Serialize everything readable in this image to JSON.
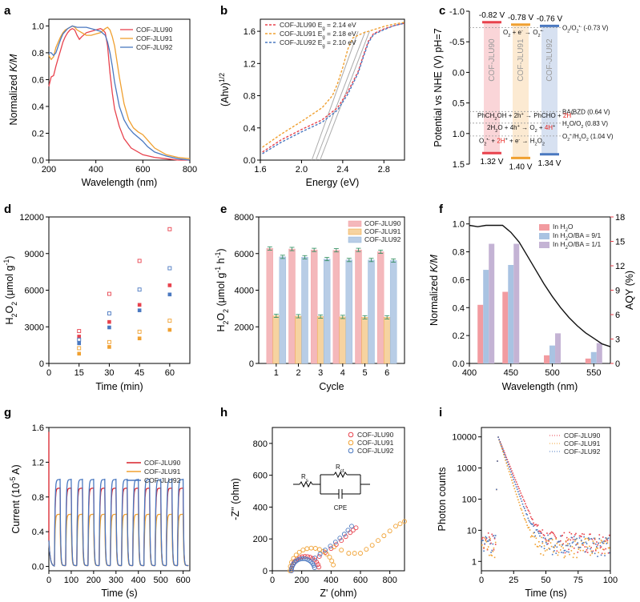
{
  "colors": {
    "jlu90": "#e8424d",
    "jlu91": "#f0a030",
    "jlu92": "#4a78c0",
    "jlu90_dark": "#d8202a",
    "pink": "#f29ba0",
    "blue": "#8fb2d8",
    "purple": "#b7a3c8",
    "aqy_axis": "#e8424d",
    "gray": "#888888"
  },
  "chart_data": [
    {
      "panel": "a",
      "type": "line",
      "xlabel": "Wavelength (nm)",
      "ylabel": "Normalized K/M",
      "xlim": [
        200,
        800
      ],
      "ylim": [
        0,
        1.05
      ],
      "xticks": [
        200,
        400,
        600,
        800
      ],
      "yticks": [
        0.0,
        0.2,
        0.4,
        0.6,
        0.8,
        1.0
      ],
      "legend": "top-right",
      "series": [
        {
          "name": "COF-JLU90",
          "color": "jlu90",
          "x": [
            200,
            210,
            220,
            230,
            240,
            250,
            260,
            270,
            280,
            290,
            300,
            310,
            320,
            330,
            340,
            360,
            380,
            400,
            420,
            430,
            440,
            450,
            460,
            470,
            480,
            500,
            520,
            550,
            600,
            650,
            700,
            750,
            800
          ],
          "y": [
            0.55,
            0.62,
            0.63,
            0.7,
            0.76,
            0.82,
            0.88,
            0.92,
            0.95,
            0.97,
            0.98,
            0.97,
            0.93,
            0.9,
            0.92,
            0.95,
            0.96,
            0.97,
            0.98,
            0.97,
            0.95,
            0.85,
            0.65,
            0.5,
            0.38,
            0.25,
            0.16,
            0.09,
            0.04,
            0.02,
            0.01,
            0.0,
            0.0
          ]
        },
        {
          "name": "COF-JLU91",
          "color": "jlu91",
          "x": [
            200,
            210,
            220,
            230,
            240,
            250,
            260,
            270,
            280,
            290,
            300,
            310,
            320,
            340,
            360,
            380,
            400,
            420,
            440,
            450,
            460,
            470,
            480,
            500,
            520,
            540,
            560,
            580,
            600,
            620,
            650,
            700,
            750,
            800
          ],
          "y": [
            0.78,
            0.75,
            0.77,
            0.84,
            0.88,
            0.92,
            0.95,
            0.97,
            0.98,
            0.99,
            1.0,
            0.99,
            0.97,
            0.95,
            0.93,
            0.93,
            0.94,
            0.95,
            0.98,
            0.99,
            0.97,
            0.92,
            0.85,
            0.62,
            0.42,
            0.3,
            0.24,
            0.21,
            0.19,
            0.15,
            0.09,
            0.04,
            0.02,
            0.01
          ]
        },
        {
          "name": "COF-JLU92",
          "color": "jlu92",
          "x": [
            200,
            210,
            220,
            230,
            240,
            250,
            260,
            280,
            300,
            320,
            340,
            360,
            380,
            400,
            420,
            440,
            450,
            460,
            470,
            480,
            500,
            520,
            540,
            560,
            580,
            600,
            620,
            650,
            700,
            750,
            800
          ],
          "y": [
            0.8,
            0.8,
            0.78,
            0.8,
            0.85,
            0.9,
            0.94,
            0.98,
            1.0,
            0.99,
            0.99,
            0.99,
            0.98,
            0.97,
            0.96,
            0.93,
            0.88,
            0.8,
            0.7,
            0.58,
            0.4,
            0.3,
            0.24,
            0.2,
            0.17,
            0.14,
            0.1,
            0.06,
            0.03,
            0.01,
            0.0
          ]
        }
      ]
    },
    {
      "panel": "b",
      "type": "line",
      "xlabel": "Energy (eV)",
      "ylabel": "(Ahν)1/2",
      "xlim": [
        1.6,
        3.0
      ],
      "ylim": [
        0.0,
        1.75
      ],
      "xticks": [
        1.6,
        2.0,
        2.4,
        2.8
      ],
      "yticks": [
        0.0,
        0.4,
        0.8,
        1.2,
        1.6
      ],
      "legend": "top-left",
      "series": [
        {
          "name": "COF-JLU90 Eg = 2.14 eV",
          "color": "jlu90",
          "x": [
            1.62,
            1.8,
            2.0,
            2.2,
            2.35,
            2.45,
            2.55,
            2.6,
            2.65,
            2.7,
            2.8,
            2.9,
            3.0
          ],
          "y": [
            0.1,
            0.25,
            0.38,
            0.5,
            0.65,
            0.85,
            1.1,
            1.3,
            1.48,
            1.57,
            1.63,
            1.67,
            1.7
          ]
        },
        {
          "name": "COF-JLU91 Eg = 2.18 eV",
          "color": "jlu91",
          "x": [
            1.62,
            1.8,
            2.0,
            2.2,
            2.3,
            2.35,
            2.4,
            2.45,
            2.5,
            2.6,
            2.7,
            2.8,
            2.9,
            3.0
          ],
          "y": [
            0.16,
            0.32,
            0.48,
            0.65,
            0.8,
            0.95,
            1.15,
            1.38,
            1.52,
            1.58,
            1.62,
            1.66,
            1.69,
            1.71
          ]
        },
        {
          "name": "COF-JLU92 Eg = 2.10 eV",
          "color": "jlu92",
          "x": [
            1.62,
            1.8,
            2.0,
            2.2,
            2.35,
            2.45,
            2.55,
            2.6,
            2.65,
            2.7,
            2.8,
            2.9,
            3.0
          ],
          "y": [
            0.08,
            0.22,
            0.35,
            0.47,
            0.62,
            0.82,
            1.08,
            1.28,
            1.46,
            1.56,
            1.62,
            1.67,
            1.7
          ]
        }
      ],
      "tangents": [
        {
          "x": [
            2.1,
            2.55
          ],
          "y": [
            0.0,
            1.6
          ]
        },
        {
          "x": [
            2.14,
            2.62
          ],
          "y": [
            0.0,
            1.6
          ]
        },
        {
          "x": [
            2.18,
            2.66
          ],
          "y": [
            0.0,
            1.6
          ]
        }
      ]
    },
    {
      "panel": "c",
      "type": "diagram",
      "ylabel": "Potential vs NHE (V) pH=7",
      "ylim": [
        -1.0,
        1.5
      ],
      "yticks": [
        -1.0,
        -0.5,
        0.0,
        0.5,
        1.0,
        1.5
      ],
      "bands": [
        {
          "name": "COF-JLU90",
          "color": "jlu90",
          "cb": -0.82,
          "vb": 1.32,
          "cb_label": "-0.82 V",
          "vb_label": "1.32 V"
        },
        {
          "name": "COF-JLU91",
          "color": "jlu91",
          "cb": -0.78,
          "vb": 1.4,
          "cb_label": "-0.78 V",
          "vb_label": "1.40 V"
        },
        {
          "name": "COF-JLU92",
          "color": "jlu92",
          "cb": -0.76,
          "vb": 1.34,
          "cb_label": "-0.76 V",
          "vb_label": "1.34 V"
        }
      ],
      "levels": [
        {
          "value": -0.73,
          "label": "O2/O2•- (-0.73 V)"
        },
        {
          "value": 0.64,
          "label": "BA/BZD (0.64 V)"
        },
        {
          "value": 0.83,
          "label": "H2O/O2 (0.83 V)"
        },
        {
          "value": 1.04,
          "label": "O2•-/H2O2 (1.04 V)"
        }
      ],
      "reactions": [
        "O2 + e- → O2•-",
        "PhCH2OH + 2h+ → PhCHO + 2H+",
        "2H2O + 4h+ → O2 + 4H+",
        "O2•- + 2H+ + e- → H2O2"
      ]
    },
    {
      "panel": "d",
      "type": "scatter",
      "xlabel": "Time (min)",
      "ylabel": "H2O2 (μmol g-1)",
      "xlim": [
        0,
        70
      ],
      "ylim": [
        0,
        12000
      ],
      "xticks": [
        0,
        15,
        30,
        45,
        60
      ],
      "yticks": [
        0,
        3000,
        6000,
        9000,
        12000
      ],
      "points": [
        {
          "x": 15,
          "y": 2650,
          "color": "jlu90",
          "open": true
        },
        {
          "x": 30,
          "y": 5700,
          "color": "jlu90",
          "open": true
        },
        {
          "x": 45,
          "y": 8400,
          "color": "jlu90",
          "open": true
        },
        {
          "x": 60,
          "y": 11000,
          "color": "jlu90",
          "open": true
        },
        {
          "x": 15,
          "y": 2200,
          "color": "jlu90",
          "open": false
        },
        {
          "x": 30,
          "y": 3400,
          "color": "jlu90",
          "open": false
        },
        {
          "x": 45,
          "y": 4800,
          "color": "jlu90",
          "open": false
        },
        {
          "x": 60,
          "y": 6400,
          "color": "jlu90",
          "open": false
        },
        {
          "x": 15,
          "y": 1950,
          "color": "jlu92",
          "open": true
        },
        {
          "x": 30,
          "y": 4100,
          "color": "jlu92",
          "open": true
        },
        {
          "x": 45,
          "y": 6050,
          "color": "jlu92",
          "open": true
        },
        {
          "x": 60,
          "y": 7800,
          "color": "jlu92",
          "open": true
        },
        {
          "x": 15,
          "y": 1650,
          "color": "jlu92",
          "open": false
        },
        {
          "x": 30,
          "y": 2950,
          "color": "jlu92",
          "open": false
        },
        {
          "x": 45,
          "y": 4350,
          "color": "jlu92",
          "open": false
        },
        {
          "x": 60,
          "y": 5650,
          "color": "jlu92",
          "open": false
        },
        {
          "x": 15,
          "y": 1250,
          "color": "jlu91",
          "open": true
        },
        {
          "x": 30,
          "y": 1750,
          "color": "jlu91",
          "open": true
        },
        {
          "x": 45,
          "y": 2600,
          "color": "jlu91",
          "open": true
        },
        {
          "x": 60,
          "y": 3500,
          "color": "jlu91",
          "open": true
        },
        {
          "x": 15,
          "y": 800,
          "color": "jlu91",
          "open": false
        },
        {
          "x": 30,
          "y": 1350,
          "color": "jlu91",
          "open": false
        },
        {
          "x": 45,
          "y": 2050,
          "color": "jlu91",
          "open": false
        },
        {
          "x": 60,
          "y": 2750,
          "color": "jlu91",
          "open": false
        }
      ]
    },
    {
      "panel": "e",
      "type": "bar",
      "xlabel": "Cycle",
      "ylabel": "H2O2 (μmol g-1 h-1)",
      "ylim": [
        0,
        8000
      ],
      "yticks": [
        0,
        2000,
        4000,
        6000,
        8000
      ],
      "categories": [
        "1",
        "2",
        "3",
        "4",
        "5",
        "6"
      ],
      "legend": "top-right",
      "series": [
        {
          "name": "COF-JLU90",
          "color": "pink",
          "values": [
            6280,
            6250,
            6200,
            6180,
            6200,
            6100
          ]
        },
        {
          "name": "COF-JLU91",
          "color": "jlu91",
          "values": [
            2600,
            2580,
            2560,
            2540,
            2520,
            2520
          ]
        },
        {
          "name": "COF-JLU92",
          "color": "blue",
          "values": [
            5820,
            5800,
            5700,
            5650,
            5650,
            5620
          ]
        }
      ]
    },
    {
      "panel": "f",
      "type": "bar",
      "xlabel": "Wavelength (nm)",
      "ylabel": "Normalized K/M",
      "y2label": "AQY (%)",
      "xlim": [
        400,
        570
      ],
      "ylim": [
        0,
        1.05
      ],
      "y2lim": [
        0,
        18
      ],
      "xticks": [
        400,
        450,
        500,
        550
      ],
      "yticks": [
        0.0,
        0.2,
        0.4,
        0.6,
        0.8,
        1.0
      ],
      "y2ticks": [
        0,
        3,
        6,
        9,
        12,
        15,
        18
      ],
      "legend": "top-right",
      "categories": [
        420,
        450,
        500,
        550
      ],
      "series": [
        {
          "name": "In H2O",
          "color": "pink",
          "values": [
            7.2,
            8.8,
            1.0,
            0.6
          ]
        },
        {
          "name": "In H2O/BA = 9/1",
          "color": "blue",
          "values": [
            11.5,
            12.1,
            2.2,
            1.4
          ]
        },
        {
          "name": "In H2O/BA = 1/1",
          "color": "purple",
          "values": [
            14.7,
            14.7,
            3.7,
            2.5
          ]
        }
      ],
      "line": {
        "x": [
          400,
          410,
          420,
          430,
          440,
          450,
          460,
          470,
          480,
          490,
          500,
          510,
          520,
          530,
          540,
          550,
          560,
          570
        ],
        "y": [
          0.99,
          0.98,
          0.99,
          0.99,
          0.99,
          0.94,
          0.87,
          0.77,
          0.67,
          0.57,
          0.48,
          0.4,
          0.33,
          0.27,
          0.22,
          0.18,
          0.14,
          0.12
        ]
      }
    },
    {
      "panel": "g",
      "type": "line",
      "xlabel": "Time (s)",
      "ylabel": "Current (10-5 A)",
      "xlim": [
        0,
        630
      ],
      "ylim": [
        -0.05,
        1.6
      ],
      "xticks": [
        0,
        100,
        200,
        300,
        400,
        500,
        600
      ],
      "yticks": [
        0.0,
        0.4,
        0.8,
        1.2,
        1.6
      ],
      "legend": "top-right",
      "cycle": {
        "period": 50,
        "on": 25,
        "first_on": 25
      },
      "series": [
        {
          "name": "COF-JLU90",
          "color": "jlu90_dark",
          "plateau": 0.9,
          "spike": 0.05
        },
        {
          "name": "COF-JLU91",
          "color": "jlu91",
          "plateau": 0.6,
          "spike": 0.0
        },
        {
          "name": "COF-JLU92",
          "color": "jlu92",
          "plateau": 1.0,
          "spike": 0.05
        }
      ]
    },
    {
      "panel": "h",
      "type": "scatter",
      "xlabel": "Z' (ohm)",
      "ylabel": "-Z'' (ohm)",
      "xlim": [
        0,
        900
      ],
      "ylim": [
        0,
        900
      ],
      "xticks": [
        0,
        200,
        400,
        600,
        800
      ],
      "yticks": [
        0,
        200,
        400,
        600,
        800
      ],
      "legend": "top-right",
      "circuit": {
        "rs": "Rs",
        "rct": "Rct",
        "cpe": "CPE"
      },
      "series": [
        {
          "name": "COF-JLU90",
          "color": "jlu90",
          "center": 225,
          "radius": 95,
          "tail_x": [
            320,
            400,
            470,
            530,
            570
          ],
          "tail_y": [
            90,
            140,
            190,
            240,
            270
          ]
        },
        {
          "name": "COF-JLU91",
          "color": "jlu91",
          "center": 270,
          "radius": 150,
          "tail_x": [
            420,
            520,
            600,
            680,
            760,
            840,
            900
          ],
          "tail_y": [
            150,
            110,
            110,
            160,
            220,
            280,
            310
          ]
        },
        {
          "name": "COF-JLU92",
          "color": "jlu92",
          "center": 210,
          "radius": 80,
          "tail_x": [
            290,
            360,
            430,
            490,
            540
          ],
          "tail_y": [
            80,
            130,
            180,
            230,
            280
          ]
        }
      ]
    },
    {
      "panel": "i",
      "type": "scatter",
      "xlabel": "Time (ns)",
      "ylabel": "Photon counts",
      "xlim": [
        0,
        100
      ],
      "ylim": [
        0.5,
        20000
      ],
      "log_y": true,
      "xticks": [
        0,
        25,
        50,
        75,
        100
      ],
      "yticks": [
        1,
        10,
        100,
        1000,
        10000
      ],
      "legend": "top-right",
      "peak_t": 13,
      "peak": 10000,
      "series": [
        {
          "name": "COF-JLU90",
          "color": "jlu90",
          "tau": 4.2,
          "bg": 4.5
        },
        {
          "name": "COF-JLU91",
          "color": "jlu91",
          "tau": 3.3,
          "bg": 3.0
        },
        {
          "name": "COF-JLU92",
          "color": "jlu92",
          "tau": 3.8,
          "bg": 3.6
        }
      ]
    }
  ]
}
